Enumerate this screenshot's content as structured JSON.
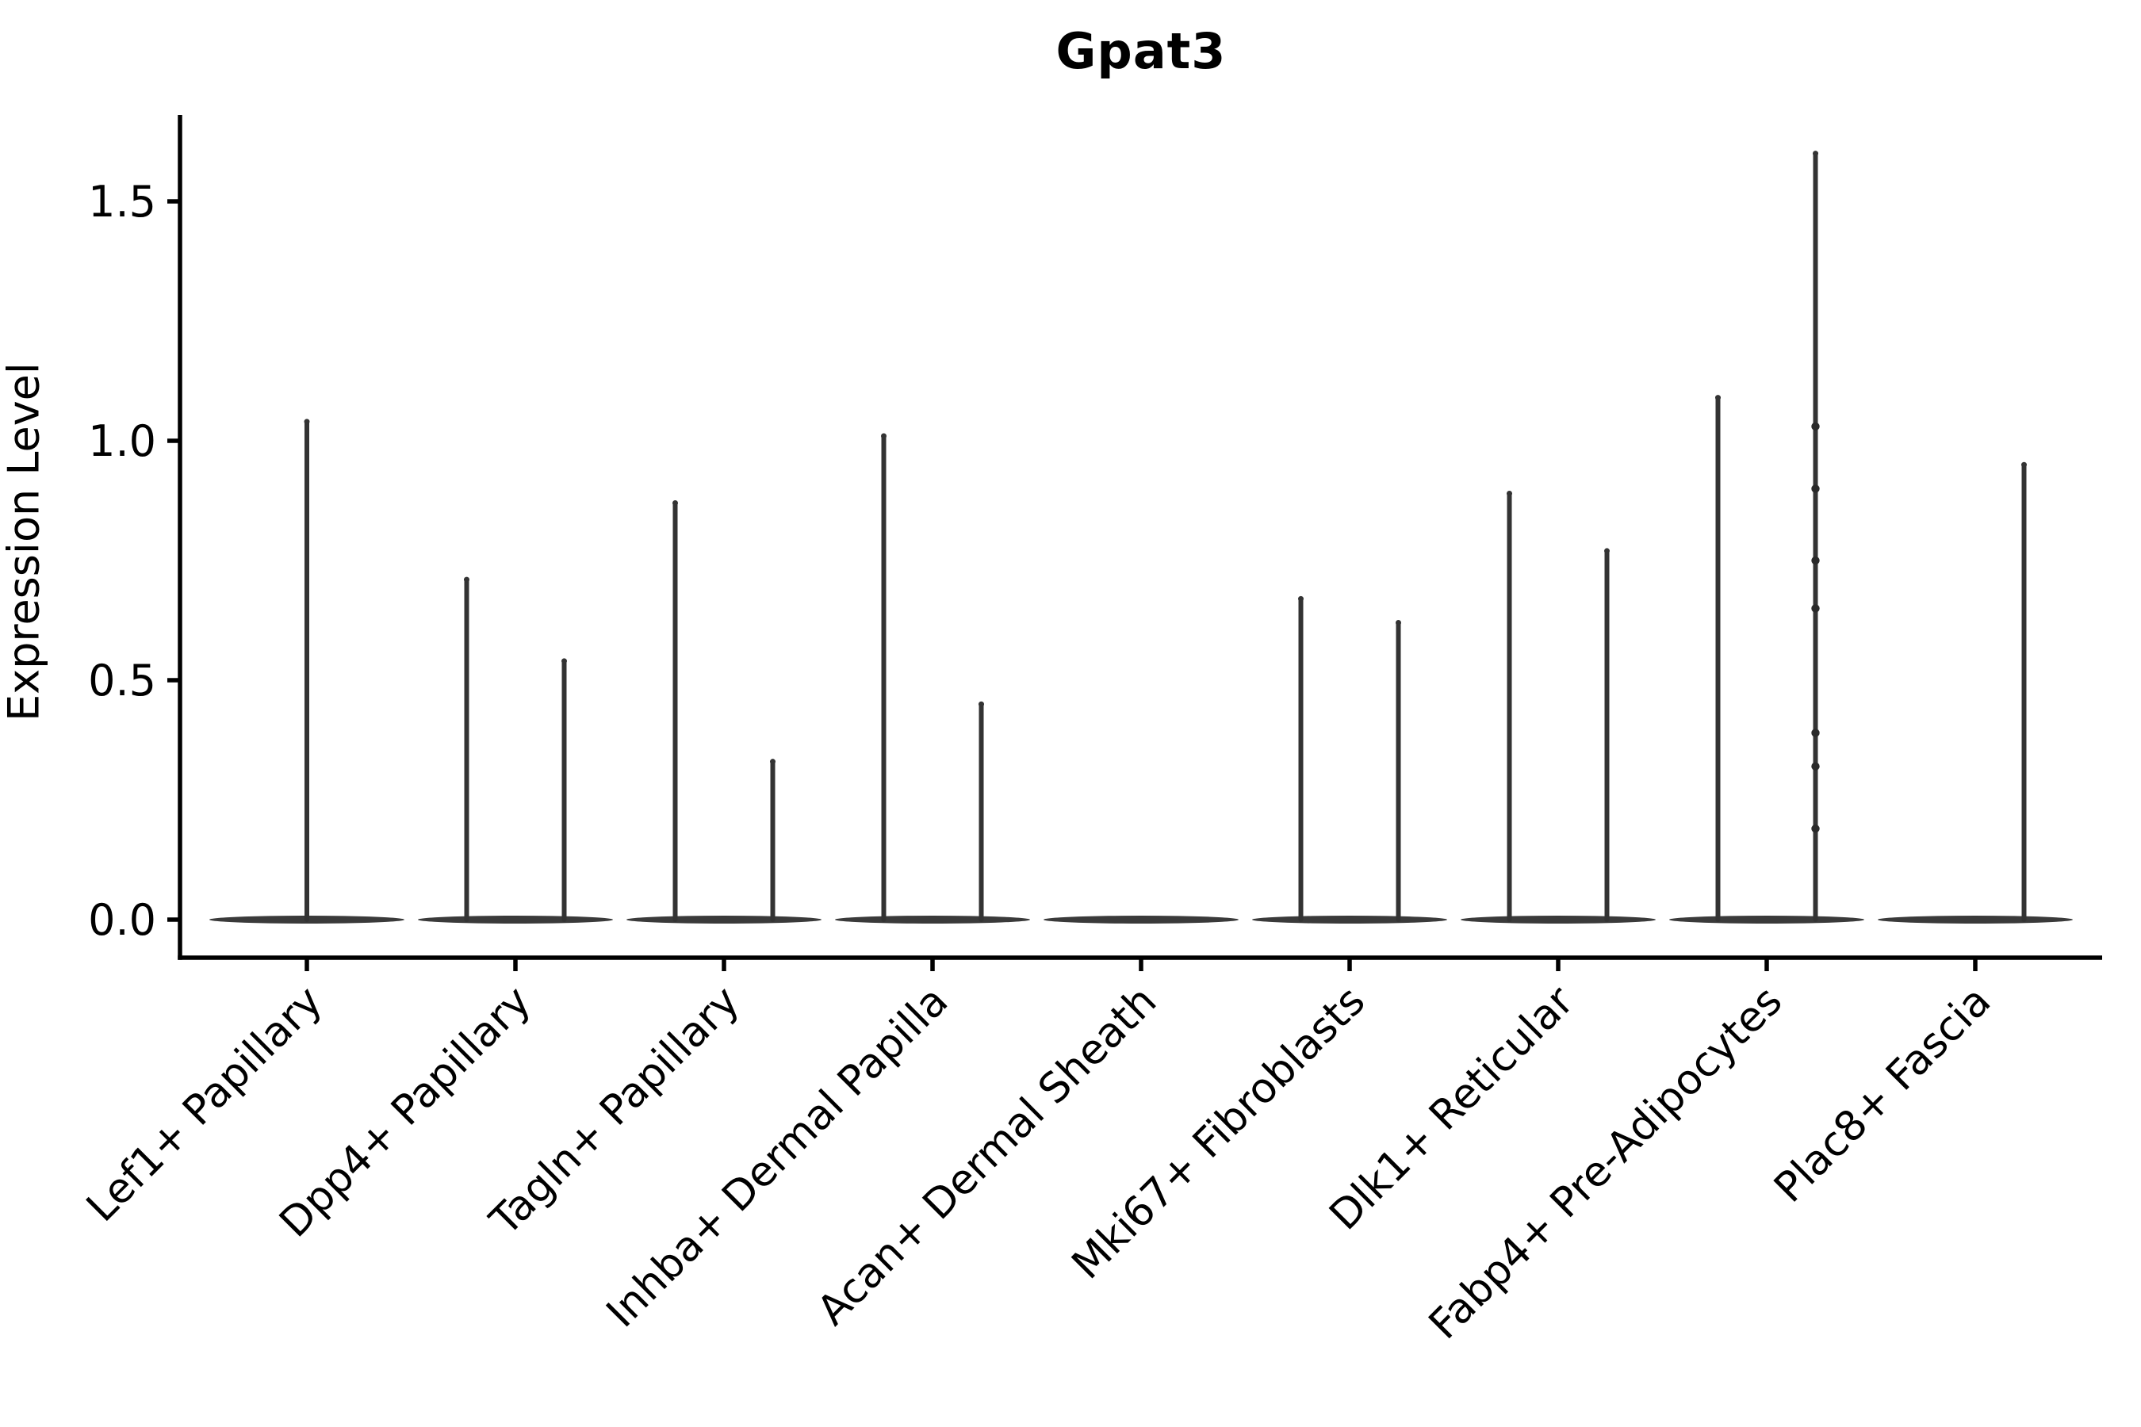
{
  "chart_data": {
    "type": "violin",
    "title": "Gpat3",
    "ylabel": "Expression Level",
    "xlabel": "",
    "grid": false,
    "legend": "none",
    "ylim": [
      -0.08,
      1.68
    ],
    "ytick_values": [
      0.0,
      0.5,
      1.0,
      1.5
    ],
    "ytick_labels": [
      "0.0",
      "0.5",
      "1.0",
      "1.5"
    ],
    "x_label_rotation_deg": 45,
    "colors": {
      "violin": "#333333",
      "baseline": "#3a3a3a",
      "point": "#2a2a2a",
      "axis": "#000000",
      "text": "#000000",
      "background": "#ffffff"
    },
    "description": "Violin plot of Gpat3 expression level per fibroblast cluster; most cells at 0 form a flat bar, thin density spikes reach the maximum expression value. offset -1 = left sub-violin, 0 = centered full-width violin, 1 = right sub-violin; max = top of density spike (0 means flat, no spike).",
    "categories": [
      {
        "label": "Lef1+ Papillary",
        "violins": [
          {
            "offset": 0,
            "max": 1.04
          }
        ]
      },
      {
        "label": "Dpp4+ Papillary",
        "violins": [
          {
            "offset": -1,
            "max": 0.71
          },
          {
            "offset": 1,
            "max": 0.54
          }
        ]
      },
      {
        "label": "Tagln+ Papillary",
        "violins": [
          {
            "offset": -1,
            "max": 0.87
          },
          {
            "offset": 1,
            "max": 0.33
          }
        ]
      },
      {
        "label": "Inhba+ Dermal Papilla",
        "violins": [
          {
            "offset": -1,
            "max": 1.01
          },
          {
            "offset": 1,
            "max": 0.45
          }
        ]
      },
      {
        "label": "Acan+ Dermal Sheath",
        "violins": [
          {
            "offset": -1,
            "max": 0
          },
          {
            "offset": 1,
            "max": 0
          }
        ]
      },
      {
        "label": "Mki67+ Fibroblasts",
        "violins": [
          {
            "offset": -1,
            "max": 0.67
          },
          {
            "offset": 1,
            "max": 0.62
          }
        ]
      },
      {
        "label": "Dlk1+ Reticular",
        "violins": [
          {
            "offset": -1,
            "max": 0.89
          },
          {
            "offset": 1,
            "max": 0.77
          }
        ]
      },
      {
        "label": "Fabp4+ Pre-Adipocytes",
        "violins": [
          {
            "offset": -1,
            "max": 1.09
          },
          {
            "offset": 1,
            "max": 1.6,
            "points": [
              1.03,
              0.9,
              0.75,
              0.65,
              0.39,
              0.32,
              0.19
            ]
          }
        ]
      },
      {
        "label": "Plac8+ Fascia",
        "violins": [
          {
            "offset": -1,
            "max": 0
          },
          {
            "offset": 1,
            "max": 0.95
          }
        ]
      }
    ]
  }
}
